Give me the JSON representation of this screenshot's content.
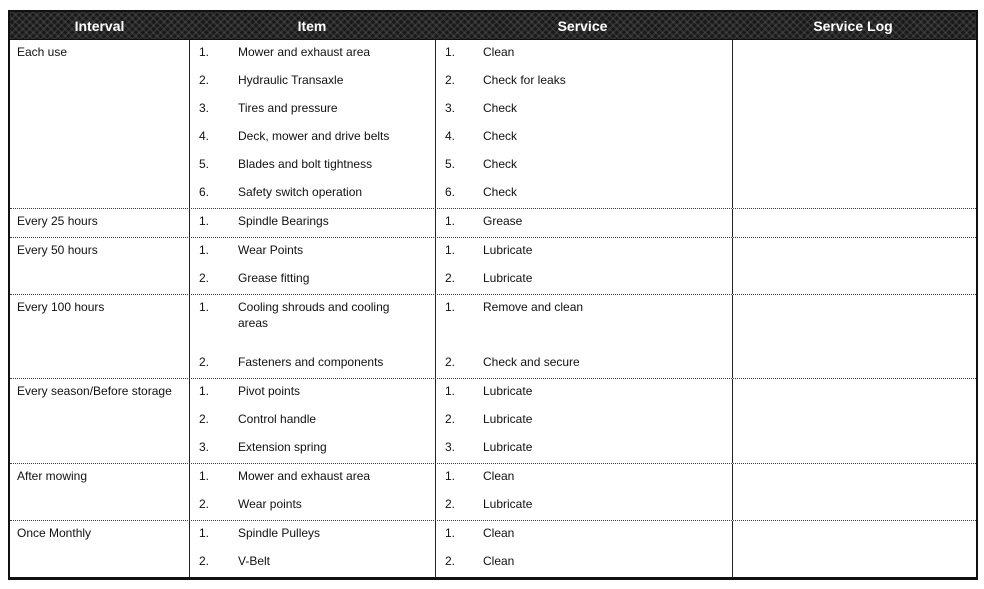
{
  "colors": {
    "header_bg": "#191919",
    "header_text": "#ffffff",
    "border": "#111111"
  },
  "header": {
    "interval": "Interval",
    "item": "Item",
    "service": "Service",
    "service_log": "Service Log"
  },
  "rows": [
    {
      "interval": "Each use",
      "entries": [
        {
          "num": "1.",
          "item": "Mower and exhaust area",
          "snum": "1.",
          "service": "Clean"
        },
        {
          "num": "2.",
          "item": "Hydraulic Transaxle",
          "snum": "2.",
          "service": "Check for leaks"
        },
        {
          "num": "3.",
          "item": "Tires and pressure",
          "snum": "3.",
          "service": "Check"
        },
        {
          "num": "4.",
          "item": "Deck, mower and drive belts",
          "snum": "4.",
          "service": "Check"
        },
        {
          "num": "5.",
          "item": "Blades and bolt tightness",
          "snum": "5.",
          "service": "Check"
        },
        {
          "num": "6.",
          "item": "Safety switch operation",
          "snum": "6.",
          "service": "Check"
        }
      ]
    },
    {
      "interval": "Every 25 hours",
      "entries": [
        {
          "num": "1.",
          "item": "Spindle Bearings",
          "snum": "1.",
          "service": "Grease"
        }
      ]
    },
    {
      "interval": "Every 50 hours",
      "entries": [
        {
          "num": "1.",
          "item": "Wear Points",
          "snum": "1.",
          "service": "Lubricate"
        },
        {
          "num": "2.",
          "item": "Grease fitting",
          "snum": "2.",
          "service": "Lubricate"
        }
      ]
    },
    {
      "interval": "Every 100 hours",
      "entries": [
        {
          "num": "1.",
          "item": "Cooling shrouds and cooling areas",
          "snum": "1.",
          "service": "Remove and clean"
        },
        {
          "num": "2.",
          "item": "Fasteners and components",
          "snum": "2.",
          "service": "Check and secure"
        }
      ]
    },
    {
      "interval": "Every season/Before storage",
      "entries": [
        {
          "num": "1.",
          "item": "Pivot points",
          "snum": "1.",
          "service": "Lubricate"
        },
        {
          "num": "2.",
          "item": "Control handle",
          "snum": "2.",
          "service": "Lubricate"
        },
        {
          "num": "3.",
          "item": "Extension spring",
          "snum": "3.",
          "service": "Lubricate"
        }
      ]
    },
    {
      "interval": "After mowing",
      "entries": [
        {
          "num": "1.",
          "item": "Mower and exhaust area",
          "snum": "1.",
          "service": "Clean"
        },
        {
          "num": "2.",
          "item": "Wear points",
          "snum": "2.",
          "service": "Lubricate"
        }
      ]
    },
    {
      "interval": "Once Monthly",
      "entries": [
        {
          "num": "1.",
          "item": "Spindle Pulleys",
          "snum": "1.",
          "service": "Clean"
        },
        {
          "num": "2.",
          "item": "V-Belt",
          "snum": "2.",
          "service": "Clean"
        }
      ]
    }
  ]
}
